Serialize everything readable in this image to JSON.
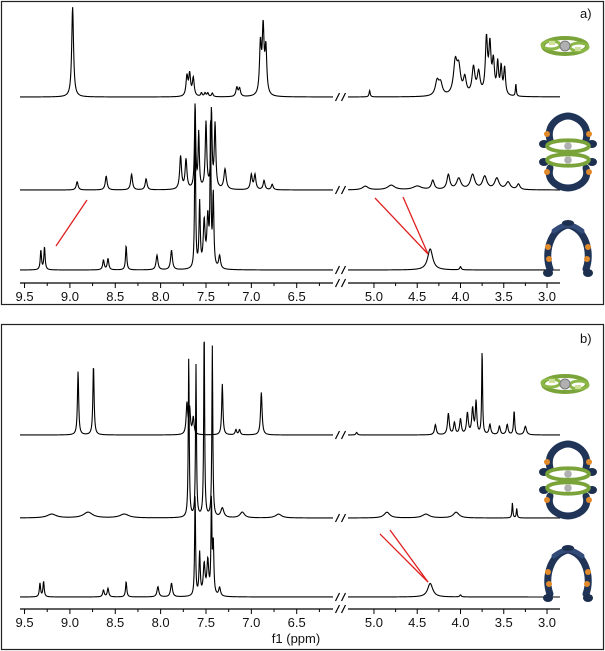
{
  "chart_data": [
    {
      "type": "line",
      "panel_label": "a)",
      "x_ticks_left": [
        "9.5",
        "9.0",
        "8.5",
        "8.0",
        "7.5",
        "7.0",
        "6.5"
      ],
      "x_ticks_right": [
        "5.0",
        "4.5",
        "4.0",
        "3.5",
        "3.0"
      ],
      "xlim_left": [
        9.55,
        6.1
      ],
      "xlim_right": [
        5.3,
        2.85
      ],
      "axis_break": "//",
      "series": [
        {
          "molecule": "green-ring-with-grey-center",
          "color": "#000000",
          "peaks": [
            {
              "x": 8.97,
              "h": 1.0,
              "w": 0.012
            },
            {
              "x": 7.71,
              "h": 0.22,
              "w": 0.012
            },
            {
              "x": 7.68,
              "h": 0.24,
              "w": 0.012
            },
            {
              "x": 7.64,
              "h": 0.2,
              "w": 0.012
            },
            {
              "x": 7.55,
              "h": 0.04,
              "w": 0.01
            },
            {
              "x": 7.51,
              "h": 0.04,
              "w": 0.01
            },
            {
              "x": 7.48,
              "h": 0.04,
              "w": 0.01
            },
            {
              "x": 7.43,
              "h": 0.04,
              "w": 0.01
            },
            {
              "x": 7.16,
              "h": 0.1,
              "w": 0.012
            },
            {
              "x": 7.13,
              "h": 0.09,
              "w": 0.012
            },
            {
              "x": 6.9,
              "h": 0.55,
              "w": 0.012
            },
            {
              "x": 6.87,
              "h": 0.72,
              "w": 0.012
            },
            {
              "x": 6.84,
              "h": 0.5,
              "w": 0.012
            },
            {
              "x": 5.05,
              "h": 0.07,
              "w": 0.008
            },
            {
              "x": 4.27,
              "h": 0.16,
              "w": 0.025
            },
            {
              "x": 4.23,
              "h": 0.13,
              "w": 0.025
            },
            {
              "x": 4.06,
              "h": 0.35,
              "w": 0.025
            },
            {
              "x": 4.02,
              "h": 0.28,
              "w": 0.025
            },
            {
              "x": 3.95,
              "h": 0.18,
              "w": 0.02
            },
            {
              "x": 3.85,
              "h": 0.3,
              "w": 0.02
            },
            {
              "x": 3.79,
              "h": 0.24,
              "w": 0.02
            },
            {
              "x": 3.7,
              "h": 0.6,
              "w": 0.015
            },
            {
              "x": 3.66,
              "h": 0.52,
              "w": 0.015
            },
            {
              "x": 3.62,
              "h": 0.35,
              "w": 0.015
            },
            {
              "x": 3.57,
              "h": 0.34,
              "w": 0.012
            },
            {
              "x": 3.53,
              "h": 0.3,
              "w": 0.012
            },
            {
              "x": 3.49,
              "h": 0.3,
              "w": 0.012
            },
            {
              "x": 3.36,
              "h": 0.14,
              "w": 0.006
            }
          ]
        },
        {
          "molecule": "double-decker-blue-green-cage",
          "color": "#000000",
          "peaks": [
            {
              "x": 8.92,
              "h": 0.09,
              "w": 0.012
            },
            {
              "x": 8.6,
              "h": 0.15,
              "w": 0.012
            },
            {
              "x": 8.32,
              "h": 0.17,
              "w": 0.012
            },
            {
              "x": 8.16,
              "h": 0.12,
              "w": 0.012
            },
            {
              "x": 7.78,
              "h": 0.36,
              "w": 0.012
            },
            {
              "x": 7.72,
              "h": 0.32,
              "w": 0.012
            },
            {
              "x": 7.62,
              "h": 0.92,
              "w": 0.008
            },
            {
              "x": 7.58,
              "h": 0.6,
              "w": 0.008
            },
            {
              "x": 7.5,
              "h": 0.72,
              "w": 0.01
            },
            {
              "x": 7.44,
              "h": 0.85,
              "w": 0.008
            },
            {
              "x": 7.4,
              "h": 0.7,
              "w": 0.01
            },
            {
              "x": 7.29,
              "h": 0.22,
              "w": 0.015
            },
            {
              "x": 7.0,
              "h": 0.16,
              "w": 0.012
            },
            {
              "x": 6.96,
              "h": 0.16,
              "w": 0.012
            },
            {
              "x": 6.86,
              "h": 0.1,
              "w": 0.012
            },
            {
              "x": 6.77,
              "h": 0.06,
              "w": 0.012
            },
            {
              "x": 5.1,
              "h": 0.04,
              "w": 0.04
            },
            {
              "x": 4.8,
              "h": 0.05,
              "w": 0.05
            },
            {
              "x": 4.5,
              "h": 0.04,
              "w": 0.06
            },
            {
              "x": 4.32,
              "h": 0.1,
              "w": 0.02
            },
            {
              "x": 4.14,
              "h": 0.16,
              "w": 0.02
            },
            {
              "x": 4.02,
              "h": 0.12,
              "w": 0.03
            },
            {
              "x": 3.86,
              "h": 0.16,
              "w": 0.03
            },
            {
              "x": 3.72,
              "h": 0.14,
              "w": 0.03
            },
            {
              "x": 3.58,
              "h": 0.12,
              "w": 0.03
            },
            {
              "x": 3.45,
              "h": 0.08,
              "w": 0.03
            },
            {
              "x": 3.33,
              "h": 0.06,
              "w": 0.02
            }
          ]
        },
        {
          "molecule": "blue-orange-tweezer",
          "color": "#000000",
          "peaks": [
            {
              "x": 9.32,
              "h": 0.12,
              "w": 0.008
            },
            {
              "x": 9.28,
              "h": 0.14,
              "w": 0.008
            },
            {
              "x": 8.63,
              "h": 0.06,
              "w": 0.01
            },
            {
              "x": 8.58,
              "h": 0.07,
              "w": 0.01
            },
            {
              "x": 8.38,
              "h": 0.15,
              "w": 0.008
            },
            {
              "x": 8.04,
              "h": 0.09,
              "w": 0.012
            },
            {
              "x": 7.88,
              "h": 0.12,
              "w": 0.012
            },
            {
              "x": 7.62,
              "h": 1.0,
              "w": 0.006
            },
            {
              "x": 7.57,
              "h": 0.4,
              "w": 0.008
            },
            {
              "x": 7.52,
              "h": 0.28,
              "w": 0.012
            },
            {
              "x": 7.48,
              "h": 0.3,
              "w": 0.012
            },
            {
              "x": 7.45,
              "h": 0.9,
              "w": 0.006
            },
            {
              "x": 7.42,
              "h": 0.45,
              "w": 0.008
            },
            {
              "x": 7.35,
              "h": 0.08,
              "w": 0.012
            },
            {
              "x": 4.35,
              "h": 0.13,
              "w": 0.035
            },
            {
              "x": 4.0,
              "h": 0.02,
              "w": 0.01
            }
          ]
        }
      ]
    },
    {
      "type": "line",
      "panel_label": "b)",
      "x_ticks_left": [
        "9.5",
        "9.0",
        "8.5",
        "8.0",
        "7.5",
        "7.0",
        "6.5"
      ],
      "x_ticks_right": [
        "5.0",
        "4.5",
        "4.0",
        "3.5",
        "3.0"
      ],
      "xlim_left": [
        9.55,
        6.1
      ],
      "xlim_right": [
        5.3,
        2.85
      ],
      "axis_break": "//",
      "xlabel": "f1 (ppm)",
      "series": [
        {
          "molecule": "green-ring-with-grey-center",
          "color": "#000000",
          "peaks": [
            {
              "x": 8.91,
              "h": 0.75,
              "w": 0.008
            },
            {
              "x": 8.74,
              "h": 0.82,
              "w": 0.008
            },
            {
              "x": 7.71,
              "h": 0.36,
              "w": 0.01
            },
            {
              "x": 7.68,
              "h": 0.3,
              "w": 0.01
            },
            {
              "x": 7.64,
              "h": 0.2,
              "w": 0.01
            },
            {
              "x": 7.32,
              "h": 0.6,
              "w": 0.008
            },
            {
              "x": 7.17,
              "h": 0.06,
              "w": 0.01
            },
            {
              "x": 7.13,
              "h": 0.06,
              "w": 0.01
            },
            {
              "x": 6.89,
              "h": 0.5,
              "w": 0.01
            },
            {
              "x": 5.2,
              "h": 0.03,
              "w": 0.01
            },
            {
              "x": 4.29,
              "h": 0.12,
              "w": 0.012
            },
            {
              "x": 4.14,
              "h": 0.25,
              "w": 0.012
            },
            {
              "x": 4.07,
              "h": 0.14,
              "w": 0.012
            },
            {
              "x": 4.0,
              "h": 0.18,
              "w": 0.012
            },
            {
              "x": 3.92,
              "h": 0.25,
              "w": 0.012
            },
            {
              "x": 3.86,
              "h": 0.3,
              "w": 0.012
            },
            {
              "x": 3.82,
              "h": 0.38,
              "w": 0.01
            },
            {
              "x": 3.75,
              "h": 1.0,
              "w": 0.006
            },
            {
              "x": 3.66,
              "h": 0.12,
              "w": 0.012
            },
            {
              "x": 3.55,
              "h": 0.1,
              "w": 0.012
            },
            {
              "x": 3.46,
              "h": 0.12,
              "w": 0.012
            },
            {
              "x": 3.38,
              "h": 0.28,
              "w": 0.008
            },
            {
              "x": 3.25,
              "h": 0.1,
              "w": 0.015
            }
          ]
        },
        {
          "molecule": "double-decker-blue-green-cage",
          "color": "#000000",
          "peaks": [
            {
              "x": 9.2,
              "h": 0.02,
              "w": 0.06
            },
            {
              "x": 8.8,
              "h": 0.03,
              "w": 0.06
            },
            {
              "x": 8.4,
              "h": 0.02,
              "w": 0.06
            },
            {
              "x": 7.69,
              "h": 0.85,
              "w": 0.006
            },
            {
              "x": 7.61,
              "h": 0.8,
              "w": 0.006
            },
            {
              "x": 7.52,
              "h": 1.0,
              "w": 0.006
            },
            {
              "x": 7.43,
              "h": 0.9,
              "w": 0.006
            },
            {
              "x": 7.32,
              "h": 0.05,
              "w": 0.02
            },
            {
              "x": 7.1,
              "h": 0.03,
              "w": 0.03
            },
            {
              "x": 6.7,
              "h": 0.02,
              "w": 0.04
            },
            {
              "x": 4.85,
              "h": 0.03,
              "w": 0.04
            },
            {
              "x": 4.4,
              "h": 0.02,
              "w": 0.05
            },
            {
              "x": 4.05,
              "h": 0.03,
              "w": 0.04
            },
            {
              "x": 3.4,
              "h": 0.08,
              "w": 0.006
            },
            {
              "x": 3.35,
              "h": 0.05,
              "w": 0.006
            }
          ]
        },
        {
          "molecule": "blue-orange-tweezer",
          "color": "#000000",
          "peaks": [
            {
              "x": 9.33,
              "h": 0.08,
              "w": 0.008
            },
            {
              "x": 9.29,
              "h": 0.09,
              "w": 0.008
            },
            {
              "x": 8.63,
              "h": 0.04,
              "w": 0.01
            },
            {
              "x": 8.58,
              "h": 0.05,
              "w": 0.01
            },
            {
              "x": 8.38,
              "h": 0.09,
              "w": 0.008
            },
            {
              "x": 8.03,
              "h": 0.06,
              "w": 0.012
            },
            {
              "x": 7.88,
              "h": 0.08,
              "w": 0.012
            },
            {
              "x": 7.62,
              "h": 0.6,
              "w": 0.006
            },
            {
              "x": 7.57,
              "h": 0.25,
              "w": 0.008
            },
            {
              "x": 7.52,
              "h": 0.18,
              "w": 0.012
            },
            {
              "x": 7.48,
              "h": 0.2,
              "w": 0.012
            },
            {
              "x": 7.44,
              "h": 0.55,
              "w": 0.006
            },
            {
              "x": 7.42,
              "h": 0.3,
              "w": 0.008
            },
            {
              "x": 7.35,
              "h": 0.05,
              "w": 0.012
            },
            {
              "x": 4.35,
              "h": 0.08,
              "w": 0.035
            },
            {
              "x": 4.0,
              "h": 0.012,
              "w": 0.01
            }
          ]
        }
      ]
    }
  ]
}
